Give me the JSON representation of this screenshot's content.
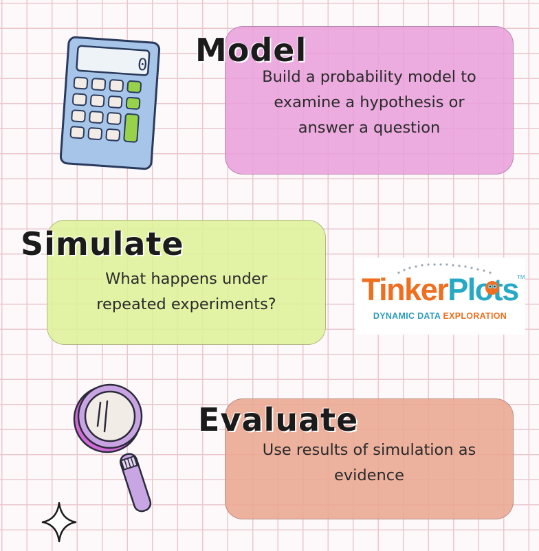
{
  "sections": {
    "model": {
      "heading": "Model",
      "description": "Build a probability model to\nexamine a hypothesis or\nanswer a question",
      "color": "#e9a1dc"
    },
    "simulate": {
      "heading": "Simulate",
      "description": "What happens under\nrepeated experiments?",
      "color": "#def19a"
    },
    "evaluate": {
      "heading": "Evaluate",
      "description": "Use results of simulation as\nevidence",
      "color": "#eaa791"
    }
  },
  "logo": {
    "word_part1": "Tinker",
    "word_part2": "Plots",
    "trademark": "TM",
    "tagline_part1": "DYNAMIC DATA ",
    "tagline_part2": "EXPLORATION",
    "color_orange": "#ef6e1f",
    "color_blue": "#27a9c6"
  },
  "icons": [
    "calculator-icon",
    "magnifying-glass-icon",
    "sparkle-icon"
  ],
  "calculator_display": "0"
}
